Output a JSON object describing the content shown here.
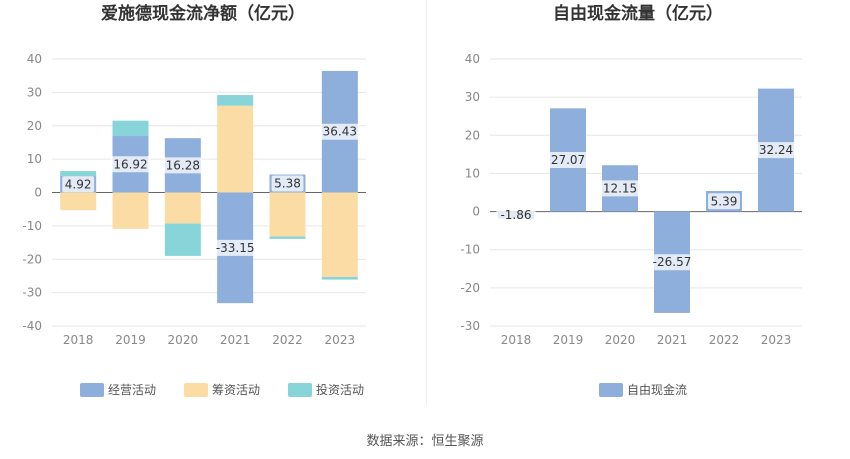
{
  "chart_data": [
    {
      "type": "bar",
      "stacked": true,
      "title": "爱施德现金流净额（亿元）",
      "categories": [
        "2018",
        "2019",
        "2020",
        "2021",
        "2022",
        "2023"
      ],
      "ylim": [
        -40,
        40
      ],
      "yticks": [
        40,
        30,
        20,
        10,
        0,
        -10,
        -20,
        -30,
        -40
      ],
      "grid": true,
      "legend_position": "bottom",
      "series": [
        {
          "name": "经营活动",
          "color": "#8eaedc",
          "values": [
            4.92,
            16.92,
            16.28,
            -33.15,
            5.38,
            36.43
          ],
          "labels": [
            "4.92",
            "16.92",
            "16.28",
            "-33.15",
            "5.38",
            "36.43"
          ]
        },
        {
          "name": "筹资活动",
          "color": "#fcdca5",
          "values": [
            -5.3,
            -10.9,
            -9.3,
            26.0,
            -13.2,
            -25.3
          ]
        },
        {
          "name": "投资活动",
          "color": "#88d5d9",
          "values": [
            1.5,
            4.6,
            -9.7,
            3.2,
            -0.7,
            -0.8
          ]
        }
      ]
    },
    {
      "type": "bar",
      "title": "自由现金流量（亿元）",
      "categories": [
        "2018",
        "2019",
        "2020",
        "2021",
        "2022",
        "2023"
      ],
      "ylim": [
        -30,
        40
      ],
      "yticks": [
        40,
        30,
        20,
        10,
        0,
        -10,
        -20,
        -30
      ],
      "grid": true,
      "legend_position": "bottom",
      "series": [
        {
          "name": "自由现金流",
          "color": "#8eaedc",
          "values": [
            -1.86,
            27.07,
            12.15,
            -26.57,
            5.39,
            32.24
          ],
          "labels": [
            "-1.86",
            "27.07",
            "12.15",
            "-26.57",
            "5.39",
            "32.24"
          ]
        }
      ]
    }
  ],
  "footer": {
    "source": "数据来源：恒生聚源"
  }
}
